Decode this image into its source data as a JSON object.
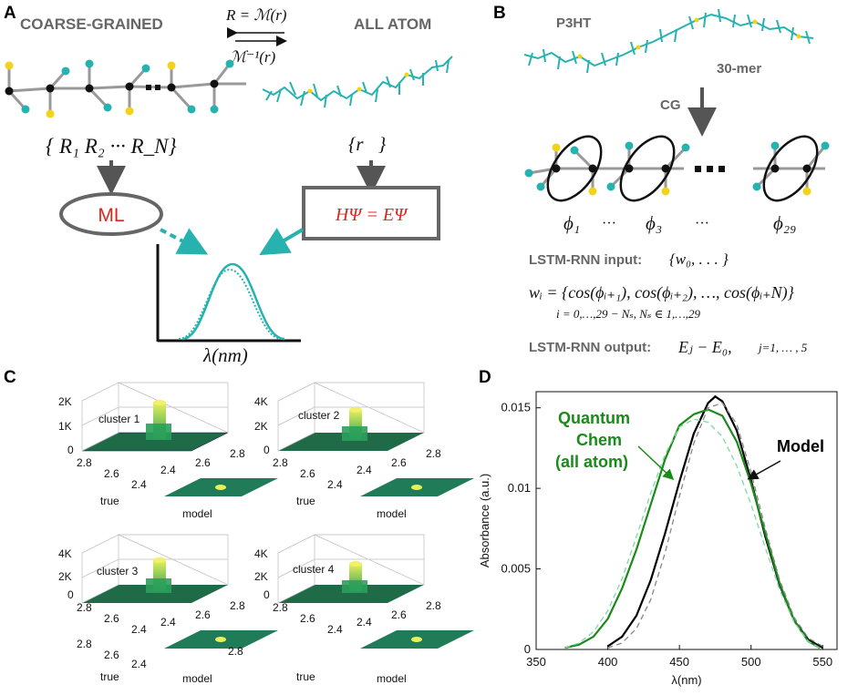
{
  "panels": {
    "a": "A",
    "b": "B",
    "c": "C",
    "d": "D"
  },
  "panel_a": {
    "coarse_grained": "COARSE-GRAINED",
    "all_atom": "ALL ATOM",
    "map_forward": "R = ℳ(r)",
    "map_inverse": "ℳ⁻¹(r)",
    "r_set": "{ R₁  R₂  ···  R_N}",
    "r_vec": "{r⃗}",
    "ml": "ML",
    "hamiltonian": "HΨ = EΨ",
    "lambda_axis": "λ(nm)",
    "accent": "#26b3b0",
    "red": "#e0241b"
  },
  "panel_b": {
    "p3ht": "P3HT",
    "mer": "30-mer",
    "cg": "CG",
    "phi1": "ϕ₁",
    "phi3": "ϕ₃",
    "phi29": "ϕ₂₉",
    "dots": "···",
    "lstm_input_label": "LSTM-RNN input:",
    "lstm_input_eq": "{w₀, . . . }",
    "w_eq": "wᵢ = {cos(ϕᵢ₊₁), cos(ϕᵢ₊₂), …, cos(ϕᵢ₊N)}",
    "index_eq": "i = 0,…,29 − Nₛ, Nₛ ∈ 1,…,29",
    "lstm_output_label": "LSTM-RNN output:",
    "lstm_output_eq": "Eⱼ − E₀,",
    "j_range": "j=1, … , 5"
  },
  "panel_c": {
    "clusters": [
      {
        "name": "cluster 1",
        "zticks": [
          "2K",
          "1K",
          "0"
        ]
      },
      {
        "name": "cluster 2",
        "zticks": [
          "4K",
          "2K",
          "0"
        ]
      },
      {
        "name": "cluster 3",
        "zticks": [
          "4K",
          "2K",
          "0"
        ]
      },
      {
        "name": "cluster 4",
        "zticks": [
          "4K",
          "2K",
          "0"
        ]
      }
    ],
    "axis_ticks_left": [
      "2.8",
      "2.6",
      "2.4"
    ],
    "axis_ticks_right": [
      "2.4",
      "2.6",
      "2.8"
    ],
    "true_label": "true",
    "model_label": "model"
  },
  "chart_data": {
    "type": "line",
    "xlabel": "λ(nm)",
    "ylabel": "Absorbance (a.u.)",
    "xlim": [
      350,
      560
    ],
    "ylim": [
      0,
      0.016
    ],
    "xticks": [
      "350",
      "400",
      "450",
      "500",
      "550"
    ],
    "yticks": [
      "0",
      "0.005",
      "0.01",
      "0.015"
    ],
    "annotations": {
      "quantum": [
        "Quantum",
        "Chem",
        "(all atom)"
      ],
      "model": "Model"
    },
    "series": [
      {
        "name": "Model",
        "color": "#000000",
        "style": "solid",
        "x": [
          400,
          410,
          420,
          430,
          440,
          450,
          460,
          470,
          475,
          480,
          490,
          500,
          510,
          520,
          530,
          540,
          550
        ],
        "y": [
          0.0002,
          0.0008,
          0.0021,
          0.0043,
          0.0072,
          0.0104,
          0.0134,
          0.0153,
          0.0157,
          0.0154,
          0.0136,
          0.0105,
          0.007,
          0.004,
          0.0018,
          0.0006,
          0.0001
        ]
      },
      {
        "name": "Quantum Chem (all atom)",
        "color": "#1a8a1a",
        "style": "solid",
        "x": [
          370,
          380,
          390,
          400,
          410,
          420,
          430,
          440,
          450,
          460,
          470,
          480,
          490,
          500,
          510,
          520,
          530,
          540,
          548
        ],
        "y": [
          0.0001,
          0.0003,
          0.0008,
          0.0019,
          0.0038,
          0.0062,
          0.009,
          0.0118,
          0.0139,
          0.0146,
          0.0149,
          0.0145,
          0.0129,
          0.0103,
          0.0072,
          0.0041,
          0.0018,
          0.0005,
          0.0001
        ]
      },
      {
        "name": "Model (dashed)",
        "color": "#888888",
        "style": "dashed",
        "x": [
          400,
          410,
          420,
          430,
          440,
          450,
          460,
          470,
          480,
          490,
          500,
          510,
          520,
          530,
          540,
          550
        ],
        "y": [
          0.0001,
          0.0004,
          0.0013,
          0.0031,
          0.006,
          0.0095,
          0.0128,
          0.015,
          0.0153,
          0.014,
          0.011,
          0.0075,
          0.0043,
          0.002,
          0.0007,
          0.0002
        ]
      },
      {
        "name": "Quantum Chem (dashed)",
        "color": "#7fd9a0",
        "style": "dashed",
        "x": [
          370,
          380,
          390,
          400,
          410,
          420,
          430,
          440,
          450,
          460,
          470,
          480,
          490,
          500,
          510,
          520,
          530,
          540,
          548
        ],
        "y": [
          0.0001,
          0.0004,
          0.0011,
          0.0024,
          0.0044,
          0.007,
          0.0097,
          0.0121,
          0.0138,
          0.0143,
          0.0141,
          0.0132,
          0.0114,
          0.009,
          0.0063,
          0.0037,
          0.0017,
          0.0005,
          0.0001
        ]
      }
    ]
  }
}
